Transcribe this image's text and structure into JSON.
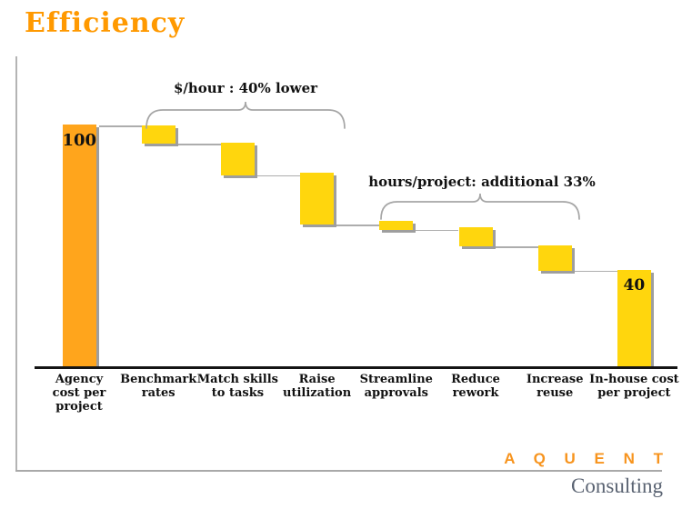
{
  "title": "Efficiency",
  "footer": {
    "brand": "A Q U E N T",
    "division": "Consulting"
  },
  "chart_data": {
    "type": "bar",
    "subtype": "waterfall",
    "title": "Efficiency",
    "xlabel": "",
    "ylabel": "",
    "ylim": [
      0,
      100
    ],
    "grid": false,
    "legend": "none",
    "annotations": [
      {
        "text": "$/hour : 40% lower",
        "spans": [
          "Benchmark rates",
          "Raise utilization"
        ]
      },
      {
        "text": "hours/project: additional 33%",
        "spans": [
          "Streamline approvals",
          "Increase reuse"
        ]
      }
    ],
    "categories": [
      "Agency cost per project",
      "Benchmark rates",
      "Match skills to tasks",
      "Raise utilization",
      "Streamline approvals",
      "Reduce rework",
      "Increase reuse",
      "In-house cost per project"
    ],
    "steps": [
      {
        "label": "Agency\ncost per\nproject",
        "top": 100,
        "bottom": 0,
        "kind": "total",
        "color": "orange",
        "value_label": "100"
      },
      {
        "label": "Benchmark\nrates",
        "top": 99.5,
        "bottom": 92,
        "kind": "decrease",
        "color": "yellow"
      },
      {
        "label": "Match skills\nto tasks",
        "top": 92.5,
        "bottom": 79,
        "kind": "decrease",
        "color": "yellow"
      },
      {
        "label": "Raise\nutilization",
        "top": 80,
        "bottom": 58.5,
        "kind": "decrease",
        "color": "yellow"
      },
      {
        "label": "Streamline\napprovals",
        "top": 60,
        "bottom": 56.5,
        "kind": "decrease",
        "color": "yellow"
      },
      {
        "label": "Reduce\nrework",
        "top": 57.5,
        "bottom": 49.5,
        "kind": "decrease",
        "color": "yellow"
      },
      {
        "label": "Increase\nreuse",
        "top": 50,
        "bottom": 39.5,
        "kind": "decrease",
        "color": "yellow"
      },
      {
        "label": "In-house cost\nper project",
        "top": 40,
        "bottom": 0,
        "kind": "total",
        "color": "yellow",
        "value_label": "40"
      }
    ],
    "colors": {
      "orange": "#FFA51C",
      "yellow": "#FFD60D",
      "shadow": "#9E9E9E",
      "connector": "#ADADAD",
      "axis": "#141414",
      "title_orange": "#FF9900",
      "brand_orange": "#F7941E",
      "division_gray": "#5A6372"
    }
  }
}
